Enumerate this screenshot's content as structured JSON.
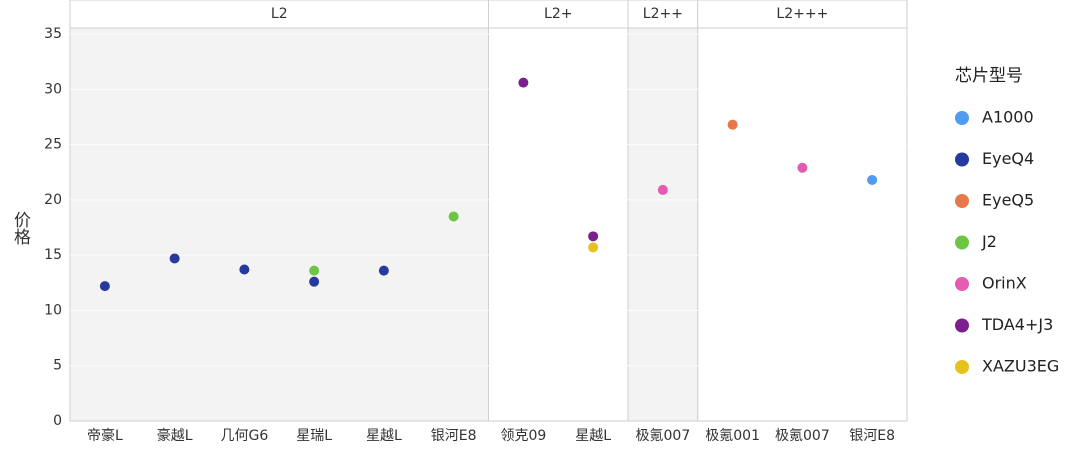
{
  "chart_data": {
    "type": "scatter",
    "ylabel": "价格",
    "ylim": [
      0,
      35
    ],
    "yticks": [
      0,
      5,
      10,
      15,
      20,
      25,
      30,
      35
    ],
    "facets": [
      {
        "name": "L2",
        "categories": [
          "帝豪L",
          "豪越L",
          "几何G6",
          "星瑞L",
          "星越L",
          "银河E8"
        ]
      },
      {
        "name": "L2+",
        "categories": [
          "领克09",
          "星越L"
        ]
      },
      {
        "name": "L2++",
        "categories": [
          "极氪007"
        ]
      },
      {
        "name": "L2+++",
        "categories": [
          "极氪001",
          "极氪007",
          "银河E8"
        ]
      }
    ],
    "legend_title": "芯片型号",
    "legend": "right",
    "series": [
      {
        "name": "A1000",
        "color": "#4f9cf0",
        "values": [
          null,
          null,
          null,
          null,
          null,
          null,
          null,
          null,
          null,
          null,
          null,
          21.8
        ]
      },
      {
        "name": "EyeQ4",
        "color": "#26399c",
        "values": [
          12.2,
          14.7,
          13.7,
          12.6,
          13.6,
          null,
          null,
          null,
          null,
          null,
          null,
          null
        ]
      },
      {
        "name": "EyeQ5",
        "color": "#e8784a",
        "values": [
          null,
          null,
          null,
          null,
          null,
          null,
          null,
          null,
          null,
          26.8,
          null,
          null
        ]
      },
      {
        "name": "J2",
        "color": "#6cc644",
        "values": [
          null,
          null,
          null,
          13.6,
          null,
          18.5,
          null,
          null,
          null,
          null,
          null,
          null
        ]
      },
      {
        "name": "OrinX",
        "color": "#e35cb2",
        "values": [
          null,
          null,
          null,
          null,
          null,
          null,
          null,
          null,
          20.9,
          null,
          22.9,
          null
        ]
      },
      {
        "name": "TDA4+J3",
        "color": "#7b1f8c",
        "values": [
          null,
          null,
          null,
          null,
          null,
          null,
          30.6,
          16.7,
          null,
          null,
          null,
          null
        ]
      },
      {
        "name": "XAZU3EG",
        "color": "#e6c21f",
        "values": [
          null,
          null,
          null,
          null,
          null,
          null,
          null,
          15.7,
          null,
          null,
          null,
          null
        ]
      }
    ]
  }
}
